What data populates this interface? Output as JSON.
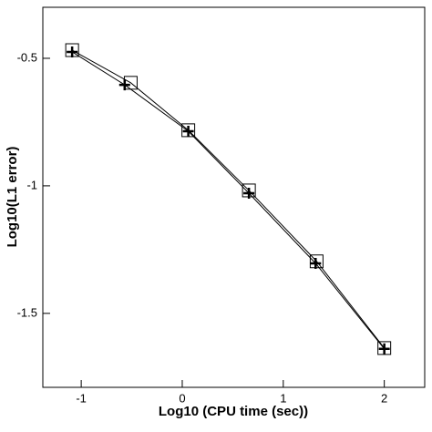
{
  "chart_data": {
    "type": "line",
    "x_label": "Log10 (CPU time (sec))",
    "y_label": "Log10(L1 error)",
    "xlim": [
      -1.38,
      2.4
    ],
    "xticks": [
      -1,
      0,
      1,
      2
    ],
    "ylim": [
      -1.79,
      -0.3
    ],
    "yticks": [
      -0.5,
      -1,
      -1.5
    ],
    "series": [
      {
        "marker": "square",
        "color": "#000000",
        "x": [
          -1.09,
          -0.51,
          0.06,
          0.66,
          1.33,
          2.0
        ],
        "values": [
          -0.468,
          -0.596,
          -0.782,
          -1.018,
          -1.296,
          -1.636
        ]
      },
      {
        "marker": "plus",
        "color": "#000000",
        "x": [
          -1.09,
          -0.57,
          0.06,
          0.66,
          1.32,
          2.0
        ],
        "values": [
          -0.475,
          -0.604,
          -0.786,
          -1.029,
          -1.304,
          -1.639
        ]
      }
    ]
  }
}
